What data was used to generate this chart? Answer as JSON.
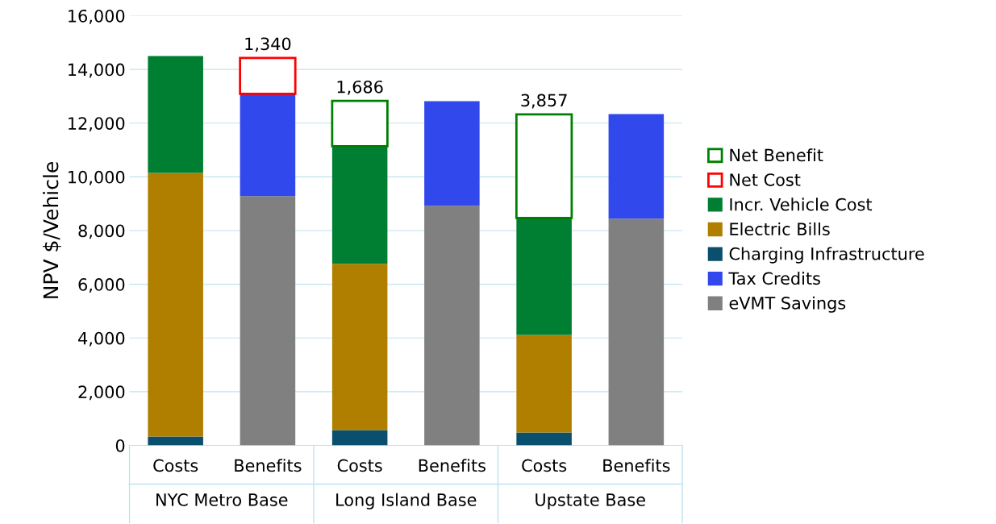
{
  "chart_data": {
    "type": "bar",
    "stacked": true,
    "ylabel": "NPV $/Vehicle",
    "categories": [
      "Costs",
      "Benefits",
      "Costs",
      "Benefits",
      "Costs",
      "Benefits"
    ],
    "annotations": [
      "NYC Metro Base",
      "Long Island Base",
      "Upstate Base"
    ],
    "ylim": [
      0,
      16000
    ],
    "yticks": [
      {
        "value": 0,
        "label": "0"
      },
      {
        "value": 2000,
        "label": "2,000"
      },
      {
        "value": 4000,
        "label": "4,000"
      },
      {
        "value": 6000,
        "label": "6,000"
      },
      {
        "value": 8000,
        "label": "8,000"
      },
      {
        "value": 10000,
        "label": "10,000"
      },
      {
        "value": 12000,
        "label": "12,000"
      },
      {
        "value": 14000,
        "label": "14,000"
      },
      {
        "value": 16000,
        "label": "16,000"
      }
    ],
    "grid": "y",
    "legend": "right",
    "series": [
      {
        "name": "eVMT Savings",
        "color": "#808080",
        "values": [
          null,
          9280,
          null,
          8920,
          null,
          8440
        ]
      },
      {
        "name": "Tax Credits",
        "color": "#3048ec",
        "values": [
          null,
          3810,
          null,
          3900,
          null,
          3900
        ]
      },
      {
        "name": "Charging Infrastructure",
        "color": "#0a4f6e",
        "values": [
          330,
          null,
          570,
          null,
          480,
          null
        ]
      },
      {
        "name": "Electric Bills",
        "color": "#b07f00",
        "values": [
          9820,
          null,
          6190,
          null,
          3630,
          null
        ]
      },
      {
        "name": "Incr. Vehicle Cost",
        "color": "#007f33",
        "values": [
          4350,
          null,
          4380,
          null,
          4360,
          null
        ]
      },
      {
        "name": "Net Cost",
        "color": "#ff0000",
        "values": [
          null,
          1340,
          null,
          null,
          null,
          null
        ],
        "value_labels": [
          null,
          "1,340",
          null,
          null,
          null,
          null
        ]
      },
      {
        "name": "Net Benefit",
        "color": "#008000",
        "values": [
          null,
          null,
          1686,
          null,
          3857,
          null
        ],
        "value_labels": [
          null,
          null,
          "1,686",
          null,
          "3,857",
          null
        ]
      }
    ]
  }
}
